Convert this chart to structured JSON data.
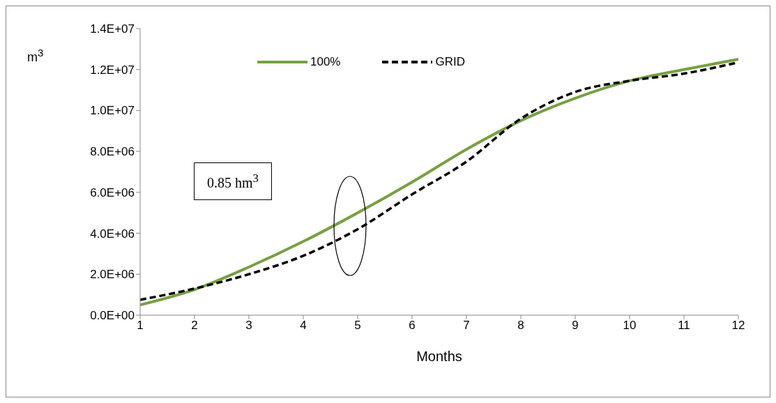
{
  "chart_data": {
    "type": "line",
    "xlabel": "Months",
    "ylabel": "m$^{3}$",
    "x": [
      1,
      2,
      3,
      4,
      5,
      6,
      7,
      8,
      9,
      10,
      11,
      12
    ],
    "series": [
      {
        "name": "100%",
        "color": "#77a043",
        "line_style": "solid",
        "values": [
          500000,
          1250000,
          2350000,
          3600000,
          5000000,
          6500000,
          8100000,
          9500000,
          10600000,
          11450000,
          12000000,
          12500000
        ]
      },
      {
        "name": "GRID",
        "color": "#000000",
        "line_style": "dashed",
        "values": [
          750000,
          1300000,
          2000000,
          2900000,
          4200000,
          5900000,
          7500000,
          9600000,
          10900000,
          11450000,
          11800000,
          12350000
        ]
      }
    ],
    "xlim": [
      1,
      12
    ],
    "xticks": [
      1,
      2,
      3,
      4,
      5,
      6,
      7,
      8,
      9,
      10,
      11,
      12
    ],
    "ylim": [
      0,
      14000000
    ],
    "yticks": [
      {
        "value": 0,
        "label": "0.0E+00"
      },
      {
        "value": 2000000,
        "label": "2.0E+06"
      },
      {
        "value": 4000000,
        "label": "4.0E+06"
      },
      {
        "value": 6000000,
        "label": "6.0E+06"
      },
      {
        "value": 8000000,
        "label": "8.0E+06"
      },
      {
        "value": 10000000,
        "label": "1.0E+07"
      },
      {
        "value": 12000000,
        "label": "1.2E+07"
      },
      {
        "value": 14000000,
        "label": "1.4E+07"
      }
    ],
    "annotations": [
      "0.85 hm$^{3}$"
    ],
    "grid": false,
    "legend": "top",
    "marker": "none"
  }
}
